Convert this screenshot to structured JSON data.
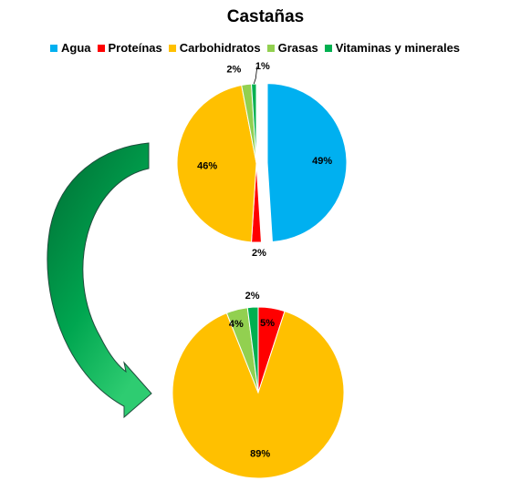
{
  "chart_data": [
    {
      "type": "pie",
      "title": "Castañas",
      "categories": [
        "Agua",
        "Proteínas",
        "Carbohidratos",
        "Grasas",
        "Vitaminas y minerales"
      ],
      "values": [
        49,
        2,
        46,
        2,
        1
      ],
      "labels": [
        "49%",
        "2%",
        "46%",
        "2%",
        "1%"
      ],
      "colors": [
        "#00B0F0",
        "#FF0000",
        "#FFC000",
        "#92D050",
        "#00B050"
      ],
      "exploded": "Agua",
      "legend_position": "top"
    },
    {
      "type": "pie",
      "categories": [
        "Proteínas",
        "Carbohidratos",
        "Grasas",
        "Vitaminas y minerales"
      ],
      "values": [
        5,
        89,
        4,
        2
      ],
      "labels": [
        "5%",
        "89%",
        "4%",
        "2%"
      ],
      "colors": [
        "#FF0000",
        "#FFC000",
        "#92D050",
        "#00B050"
      ]
    }
  ],
  "arrow_colors": {
    "dark": "#007A3D",
    "light": "#00B050"
  }
}
